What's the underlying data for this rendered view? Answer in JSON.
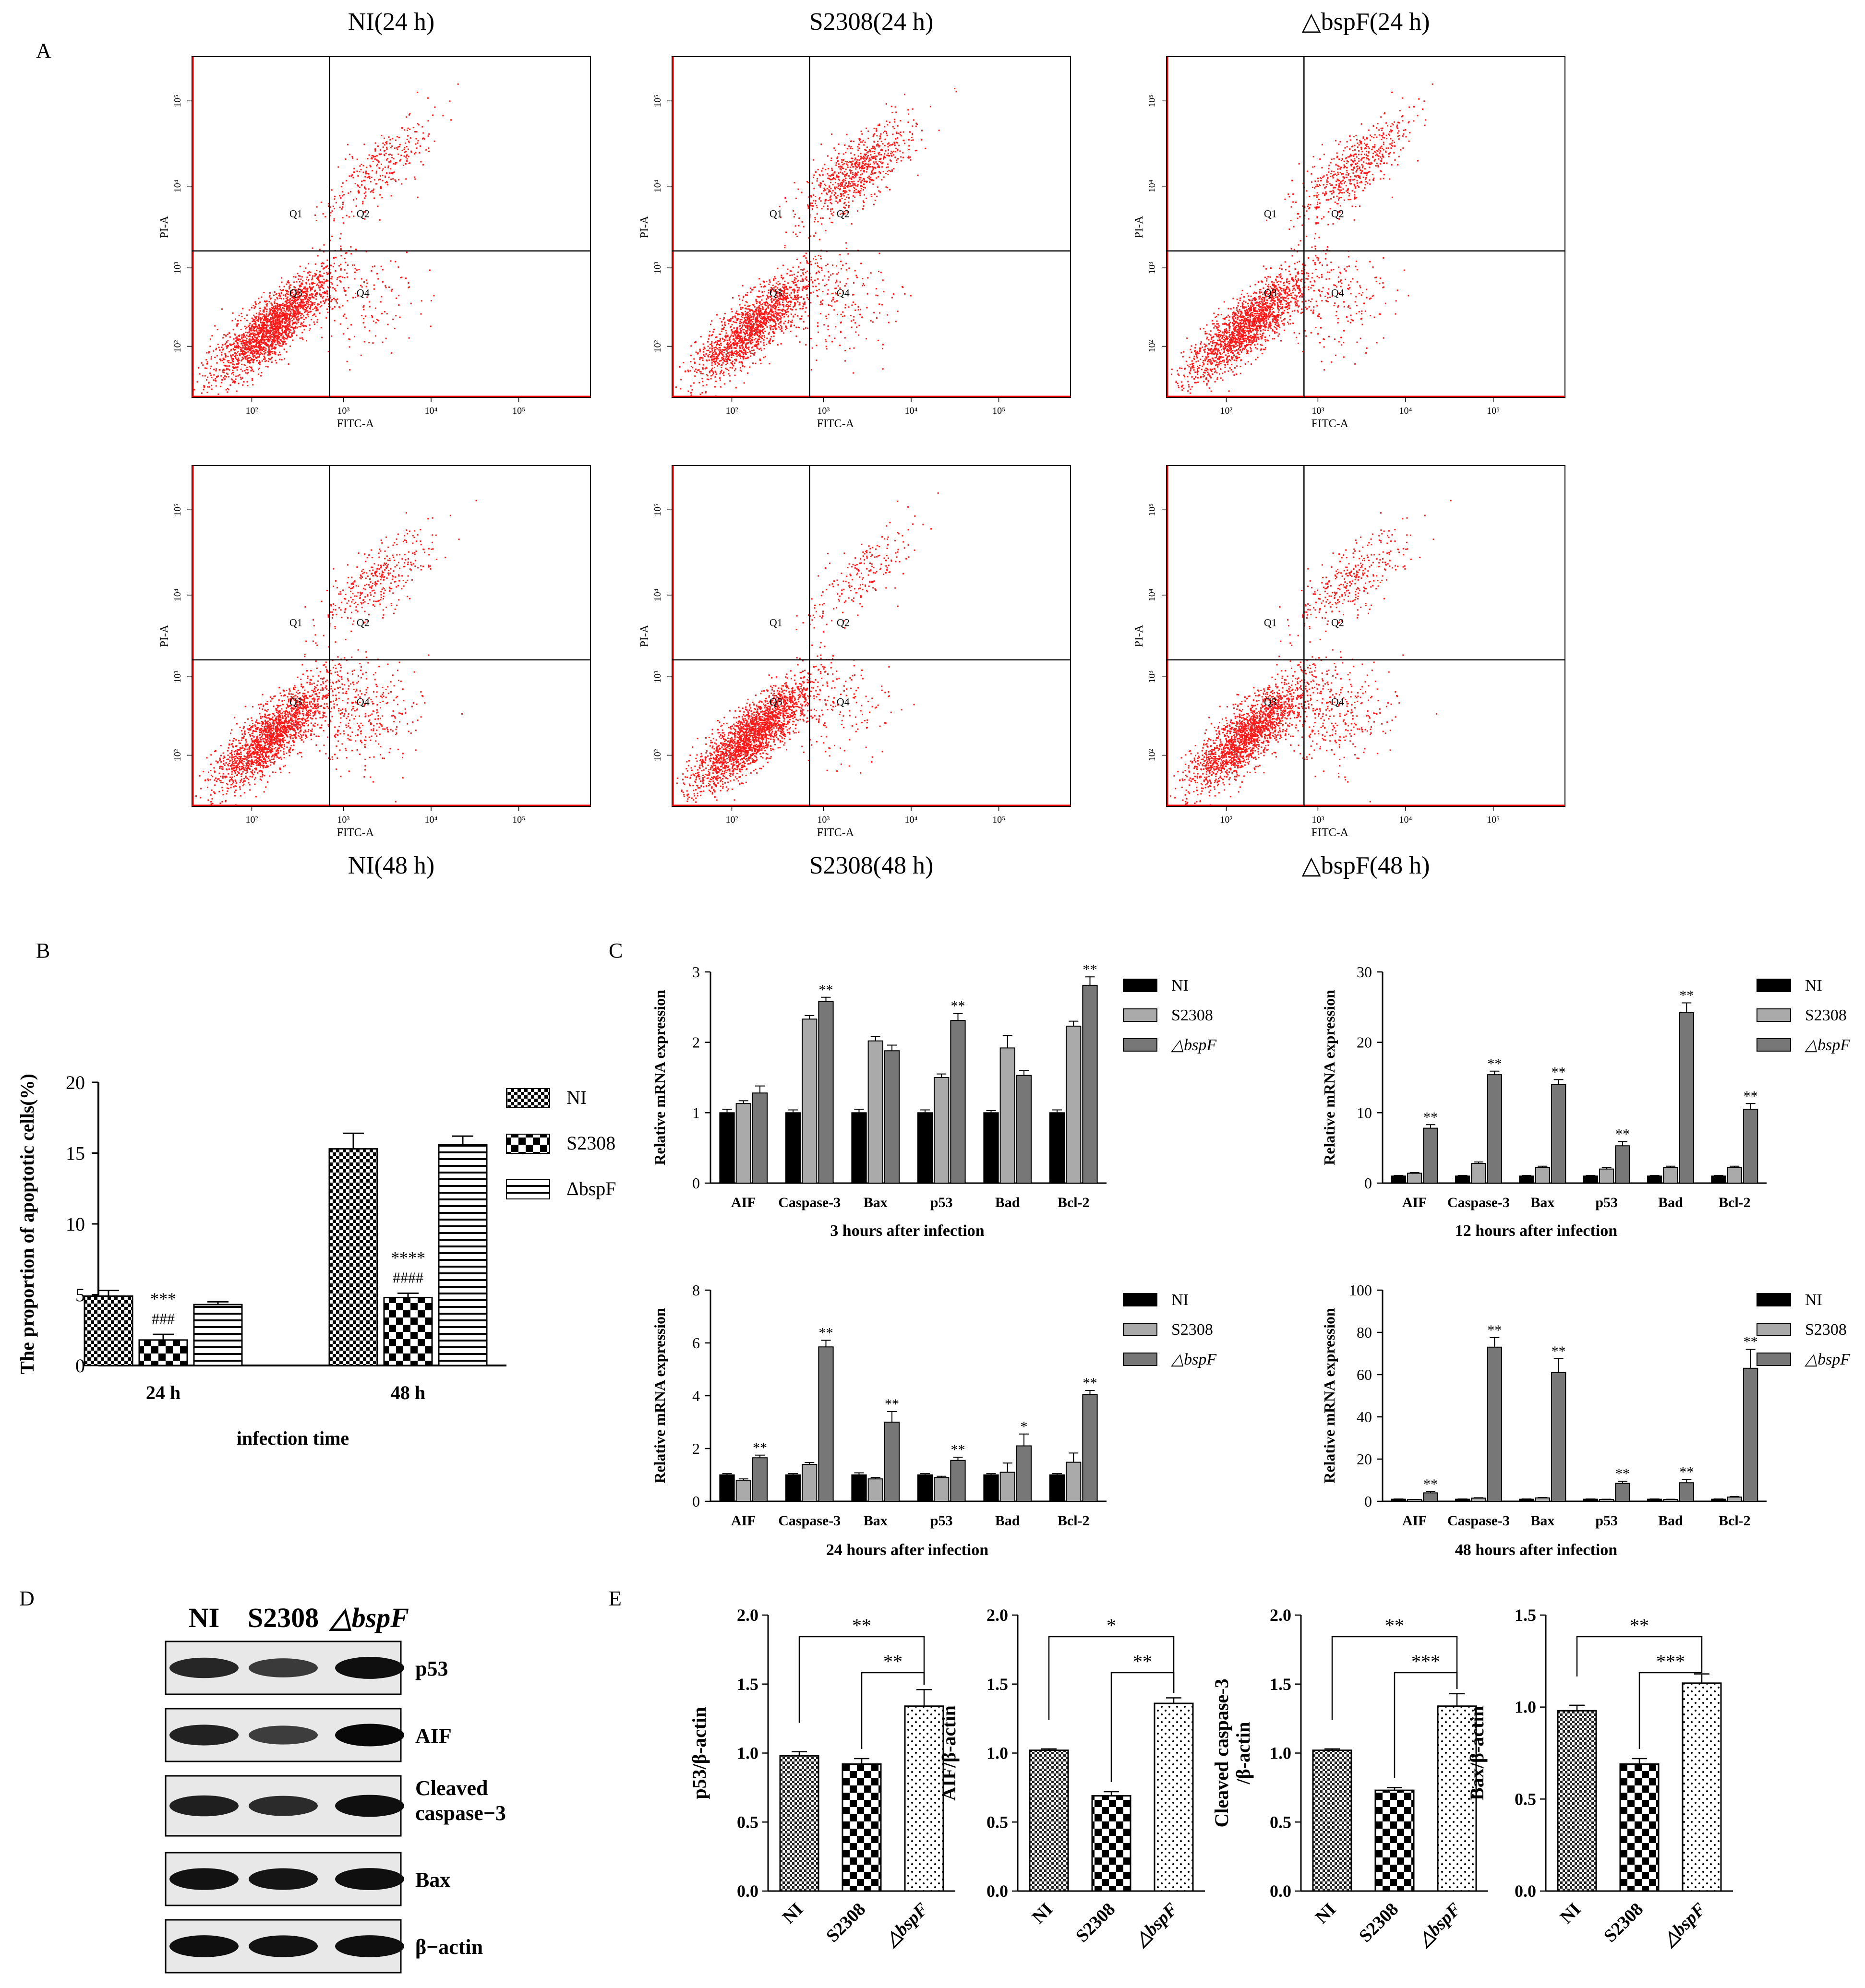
{
  "panel_labels": {
    "a": "A",
    "b": "B",
    "c": "C",
    "d": "D",
    "e": "E"
  },
  "flow": {
    "x_label": "FITC-A",
    "y_label": "PI-A",
    "x_ticks": [
      "10²",
      "10³",
      "10⁴",
      "10⁵"
    ],
    "y_ticks": [
      "10²",
      "10³",
      "10⁴",
      "10⁵"
    ],
    "quadrants": [
      "Q1",
      "Q2",
      "Q3",
      "Q4"
    ],
    "plots": [
      {
        "title": "NI(24 h)",
        "density": {
          "main": 0.82,
          "q2": 0.12,
          "q4": 0.06
        }
      },
      {
        "title": "S2308(24 h)",
        "density": {
          "main": 0.62,
          "q2": 0.3,
          "q4": 0.08
        }
      },
      {
        "title": "△bspF(24 h)",
        "density": {
          "main": 0.7,
          "q2": 0.22,
          "q4": 0.08
        }
      },
      {
        "title": "NI(48 h)",
        "density": {
          "main": 0.72,
          "q2": 0.14,
          "q4": 0.14
        }
      },
      {
        "title": "S2308(48 h)",
        "density": {
          "main": 0.86,
          "q2": 0.08,
          "q4": 0.06
        }
      },
      {
        "title": "△bspF(48 h)",
        "density": {
          "main": 0.74,
          "q2": 0.13,
          "q4": 0.13
        }
      }
    ]
  },
  "chart_data": [
    {
      "id": "B",
      "type": "bar",
      "title": "",
      "ylabel": "The proportion of apoptotic cells(%)",
      "xlabel": "infection time",
      "categories": [
        "24 h",
        "48 h"
      ],
      "ylim": [
        0,
        20
      ],
      "yticks": [
        "0",
        "5",
        "10",
        "15",
        "20"
      ],
      "series": [
        {
          "name": "NI",
          "values": [
            4.9,
            15.3
          ],
          "err": [
            0.4,
            1.1
          ],
          "pattern": "check"
        },
        {
          "name": "S2308",
          "values": [
            1.8,
            4.8
          ],
          "err": [
            0.4,
            0.3
          ],
          "pattern": "bigcheck"
        },
        {
          "name": "ΔbspF",
          "values": [
            4.3,
            15.6
          ],
          "err": [
            0.2,
            0.6
          ],
          "pattern": "hline"
        }
      ],
      "annotations": [
        {
          "category": 0,
          "series": 1,
          "lines": [
            "***",
            "###"
          ]
        },
        {
          "category": 1,
          "series": 1,
          "lines": [
            "****",
            "####"
          ]
        }
      ]
    },
    {
      "id": "C1",
      "type": "bar",
      "title": "3 hours after infection",
      "ylabel": "Relative mRNA  expression",
      "categories": [
        "AIF",
        "Caspase-3",
        "Bax",
        "p53",
        "Bad",
        "Bcl-2"
      ],
      "ylim": [
        0,
        3
      ],
      "yticks": [
        "0",
        "1",
        "2",
        "3"
      ],
      "series": [
        {
          "name": "NI",
          "values": [
            1.0,
            1.0,
            1.0,
            1.0,
            1.0,
            1.0
          ],
          "err": [
            0.05,
            0.04,
            0.05,
            0.04,
            0.03,
            0.04
          ]
        },
        {
          "name": "S2308",
          "values": [
            1.13,
            2.33,
            2.02,
            1.5,
            1.92,
            2.23
          ],
          "err": [
            0.04,
            0.05,
            0.06,
            0.05,
            0.18,
            0.07
          ]
        },
        {
          "name": "△bspF",
          "values": [
            1.28,
            2.58,
            1.88,
            2.31,
            1.53,
            2.81
          ],
          "err": [
            0.1,
            0.06,
            0.08,
            0.1,
            0.07,
            0.12
          ]
        }
      ],
      "stars": [
        "",
        "**",
        "",
        "**",
        "",
        "**"
      ]
    },
    {
      "id": "C2",
      "type": "bar",
      "title": "12 hours after infection",
      "ylabel": "Relative mRNA  expression",
      "categories": [
        "AIF",
        "Caspase-3",
        "Bax",
        "p53",
        "Bad",
        "Bcl-2"
      ],
      "ylim": [
        0,
        30
      ],
      "yticks": [
        "0",
        "10",
        "20",
        "30"
      ],
      "series": [
        {
          "name": "NI",
          "values": [
            1.0,
            1.0,
            1.0,
            1.0,
            1.0,
            1.0
          ],
          "err": [
            0.1,
            0.1,
            0.1,
            0.1,
            0.1,
            0.1
          ]
        },
        {
          "name": "S2308",
          "values": [
            1.4,
            2.8,
            2.2,
            2.0,
            2.2,
            2.2
          ],
          "err": [
            0.1,
            0.2,
            0.2,
            0.2,
            0.2,
            0.2
          ]
        },
        {
          "name": "△bspF",
          "values": [
            7.8,
            15.4,
            14.0,
            5.3,
            24.2,
            10.5
          ],
          "err": [
            0.5,
            0.5,
            0.7,
            0.6,
            1.4,
            0.8
          ]
        }
      ],
      "stars": [
        "**",
        "**",
        "**",
        "**",
        "**",
        "**"
      ]
    },
    {
      "id": "C3",
      "type": "bar",
      "title": "24 hours after infection",
      "ylabel": "Relative mRNA  expression",
      "categories": [
        "AIF",
        "Caspase-3",
        "Bax",
        "p53",
        "Bad",
        "Bcl-2"
      ],
      "ylim": [
        0,
        8
      ],
      "yticks": [
        "0",
        "2",
        "4",
        "6",
        "8"
      ],
      "series": [
        {
          "name": "NI",
          "values": [
            1.0,
            1.0,
            1.0,
            1.0,
            1.0,
            1.0
          ],
          "err": [
            0.05,
            0.05,
            0.08,
            0.05,
            0.05,
            0.05
          ]
        },
        {
          "name": "S2308",
          "values": [
            0.8,
            1.4,
            0.85,
            0.9,
            1.1,
            1.48
          ],
          "err": [
            0.05,
            0.07,
            0.05,
            0.05,
            0.35,
            0.35
          ]
        },
        {
          "name": "△bspF",
          "values": [
            1.65,
            5.85,
            3.0,
            1.55,
            2.1,
            4.05
          ],
          "err": [
            0.1,
            0.25,
            0.4,
            0.12,
            0.45,
            0.15
          ]
        }
      ],
      "stars": [
        "**",
        "**",
        "**",
        "**",
        "*",
        "**"
      ]
    },
    {
      "id": "C4",
      "type": "bar",
      "title": "48 hours after infection",
      "ylabel": "Relative mRNA  expression",
      "categories": [
        "AIF",
        "Caspase-3",
        "Bax",
        "p53",
        "Bad",
        "Bcl-2"
      ],
      "ylim": [
        0,
        100
      ],
      "yticks": [
        "0",
        "20",
        "40",
        "60",
        "80",
        "100"
      ],
      "series": [
        {
          "name": "NI",
          "values": [
            1.0,
            1.0,
            1.0,
            1.0,
            1.0,
            1.0
          ],
          "err": [
            0.1,
            0.1,
            0.1,
            0.1,
            0.1,
            0.1
          ]
        },
        {
          "name": "S2308",
          "values": [
            0.8,
            1.5,
            1.6,
            0.9,
            0.9,
            2.0
          ],
          "err": [
            0.1,
            0.2,
            0.2,
            0.1,
            0.1,
            0.3
          ]
        },
        {
          "name": "△bspF",
          "values": [
            4.0,
            73.0,
            61.0,
            8.5,
            8.8,
            63.0
          ],
          "err": [
            0.6,
            4.5,
            6.5,
            1.0,
            1.5,
            9.0
          ]
        }
      ],
      "stars": [
        "**",
        "**",
        "**",
        "**",
        "**",
        "**"
      ]
    },
    {
      "id": "E1",
      "type": "bar",
      "ylabel": "p53/β-actin",
      "categories": [
        "NI",
        "S2308",
        "△bspF"
      ],
      "ylim": [
        0,
        2
      ],
      "yticks": [
        "0.0",
        "0.5",
        "1.0",
        "1.5",
        "2.0"
      ],
      "values": [
        0.98,
        0.92,
        1.34
      ],
      "err": [
        0.03,
        0.04,
        0.12
      ],
      "brackets": [
        {
          "from": 0,
          "to": 2,
          "label": "**"
        },
        {
          "from": 1,
          "to": 2,
          "label": "**"
        }
      ]
    },
    {
      "id": "E2",
      "type": "bar",
      "ylabel": "AIF/β-actin",
      "categories": [
        "NI",
        "S2308",
        "△bspF"
      ],
      "ylim": [
        0,
        2
      ],
      "yticks": [
        "0.0",
        "0.5",
        "1.0",
        "1.5",
        "2.0"
      ],
      "values": [
        1.02,
        0.69,
        1.36
      ],
      "err": [
        0.01,
        0.03,
        0.04
      ],
      "brackets": [
        {
          "from": 0,
          "to": 2,
          "label": "*"
        },
        {
          "from": 1,
          "to": 2,
          "label": "**"
        }
      ]
    },
    {
      "id": "E3",
      "type": "bar",
      "ylabel": "Cleaved caspase-3\n/β-actin",
      "categories": [
        "NI",
        "S2308",
        "△bspF"
      ],
      "ylim": [
        0,
        2
      ],
      "yticks": [
        "0.0",
        "0.5",
        "1.0",
        "1.5",
        "2.0"
      ],
      "values": [
        1.02,
        0.73,
        1.34
      ],
      "err": [
        0.01,
        0.02,
        0.09
      ],
      "brackets": [
        {
          "from": 0,
          "to": 2,
          "label": "**"
        },
        {
          "from": 1,
          "to": 2,
          "label": "***"
        }
      ]
    },
    {
      "id": "E4",
      "type": "bar",
      "ylabel": "Bax/β-actin",
      "categories": [
        "NI",
        "S2308",
        "△bspF"
      ],
      "ylim": [
        0,
        1.5
      ],
      "yticks": [
        "0.0",
        "0.5",
        "1.0",
        "1.5"
      ],
      "values": [
        0.98,
        0.69,
        1.13
      ],
      "err": [
        0.03,
        0.03,
        0.05
      ],
      "brackets": [
        {
          "from": 0,
          "to": 2,
          "label": "**"
        },
        {
          "from": 1,
          "to": 2,
          "label": "***"
        }
      ]
    }
  ],
  "western": {
    "header": [
      "NI",
      "S2308",
      "△bspF"
    ],
    "rows": [
      {
        "label": "p53",
        "intensity": [
          0.75,
          0.62,
          0.9
        ]
      },
      {
        "label": "AIF",
        "intensity": [
          0.78,
          0.6,
          0.95
        ]
      },
      {
        "label": "Cleaved\ncaspase−3",
        "intensity": [
          0.8,
          0.72,
          0.9
        ]
      },
      {
        "label": "Bax",
        "intensity": [
          0.88,
          0.86,
          0.9
        ]
      },
      {
        "label": "β−actin",
        "intensity": [
          0.9,
          0.88,
          0.9
        ]
      }
    ]
  }
}
